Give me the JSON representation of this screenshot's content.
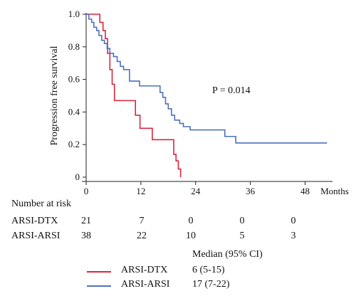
{
  "chart_data": {
    "type": "line",
    "title": "",
    "ylabel": "Progression free survival",
    "xlabel": "Months",
    "xlim": [
      0,
      54
    ],
    "ylim": [
      0,
      1.0
    ],
    "x_ticks": [
      0,
      12,
      24,
      36,
      48
    ],
    "x_tick_labels": [
      "0",
      "12",
      "24",
      "36",
      "48"
    ],
    "y_ticks": [
      0,
      0.2,
      0.4,
      0.6,
      0.8,
      1.0
    ],
    "y_tick_labels": [
      "0",
      "0.2",
      "0.4",
      "0.6",
      "0.8",
      "1.0"
    ],
    "annotation": "P = 0.014",
    "grid": false,
    "series": [
      {
        "name": "ARSI-DTX",
        "color": "#d9273b",
        "step": true,
        "x": [
          0,
          3,
          3.7,
          4.2,
          4.7,
          5.2,
          5.7,
          6.2,
          10.8,
          11.8,
          14.5,
          19.2,
          19.7,
          20.2,
          20.7
        ],
        "y": [
          1.0,
          0.95,
          0.9,
          0.85,
          0.76,
          0.66,
          0.57,
          0.47,
          0.38,
          0.3,
          0.23,
          0.14,
          0.1,
          0.05,
          0.0
        ]
      },
      {
        "name": "ARSI-ARSI",
        "color": "#4f71be",
        "step": true,
        "x": [
          0,
          0.6,
          1.2,
          1.7,
          2.3,
          2.8,
          3.4,
          4.0,
          4.6,
          5.2,
          6.0,
          6.8,
          7.5,
          8.2,
          9.5,
          11.7,
          16.2,
          16.8,
          17.4,
          18.0,
          18.7,
          19.4,
          20.5,
          21.3,
          22.8,
          24.2,
          30.4,
          32.8,
          52.8
        ],
        "y": [
          1.0,
          0.97,
          0.95,
          0.92,
          0.9,
          0.87,
          0.84,
          0.82,
          0.79,
          0.76,
          0.74,
          0.71,
          0.68,
          0.66,
          0.59,
          0.56,
          0.52,
          0.49,
          0.45,
          0.42,
          0.38,
          0.35,
          0.33,
          0.31,
          0.29,
          0.29,
          0.25,
          0.21,
          0.21
        ]
      }
    ]
  },
  "risk_table": {
    "title": "Number at risk",
    "times": [
      0,
      12,
      24,
      36,
      48
    ],
    "rows": [
      {
        "name": "ARSI-DTX",
        "values": [
          "21",
          "7",
          "0",
          "0",
          "0"
        ]
      },
      {
        "name": "ARSI-ARSI",
        "values": [
          "38",
          "22",
          "10",
          "5",
          "3"
        ]
      }
    ]
  },
  "legend": {
    "header": "Median (95% CI)",
    "items": [
      {
        "name": "ARSI-DTX",
        "median": "6 (5-15)",
        "color": "#d9273b"
      },
      {
        "name": "ARSI-ARSI",
        "median": "17 (7-22)",
        "color": "#4f71be"
      }
    ]
  }
}
